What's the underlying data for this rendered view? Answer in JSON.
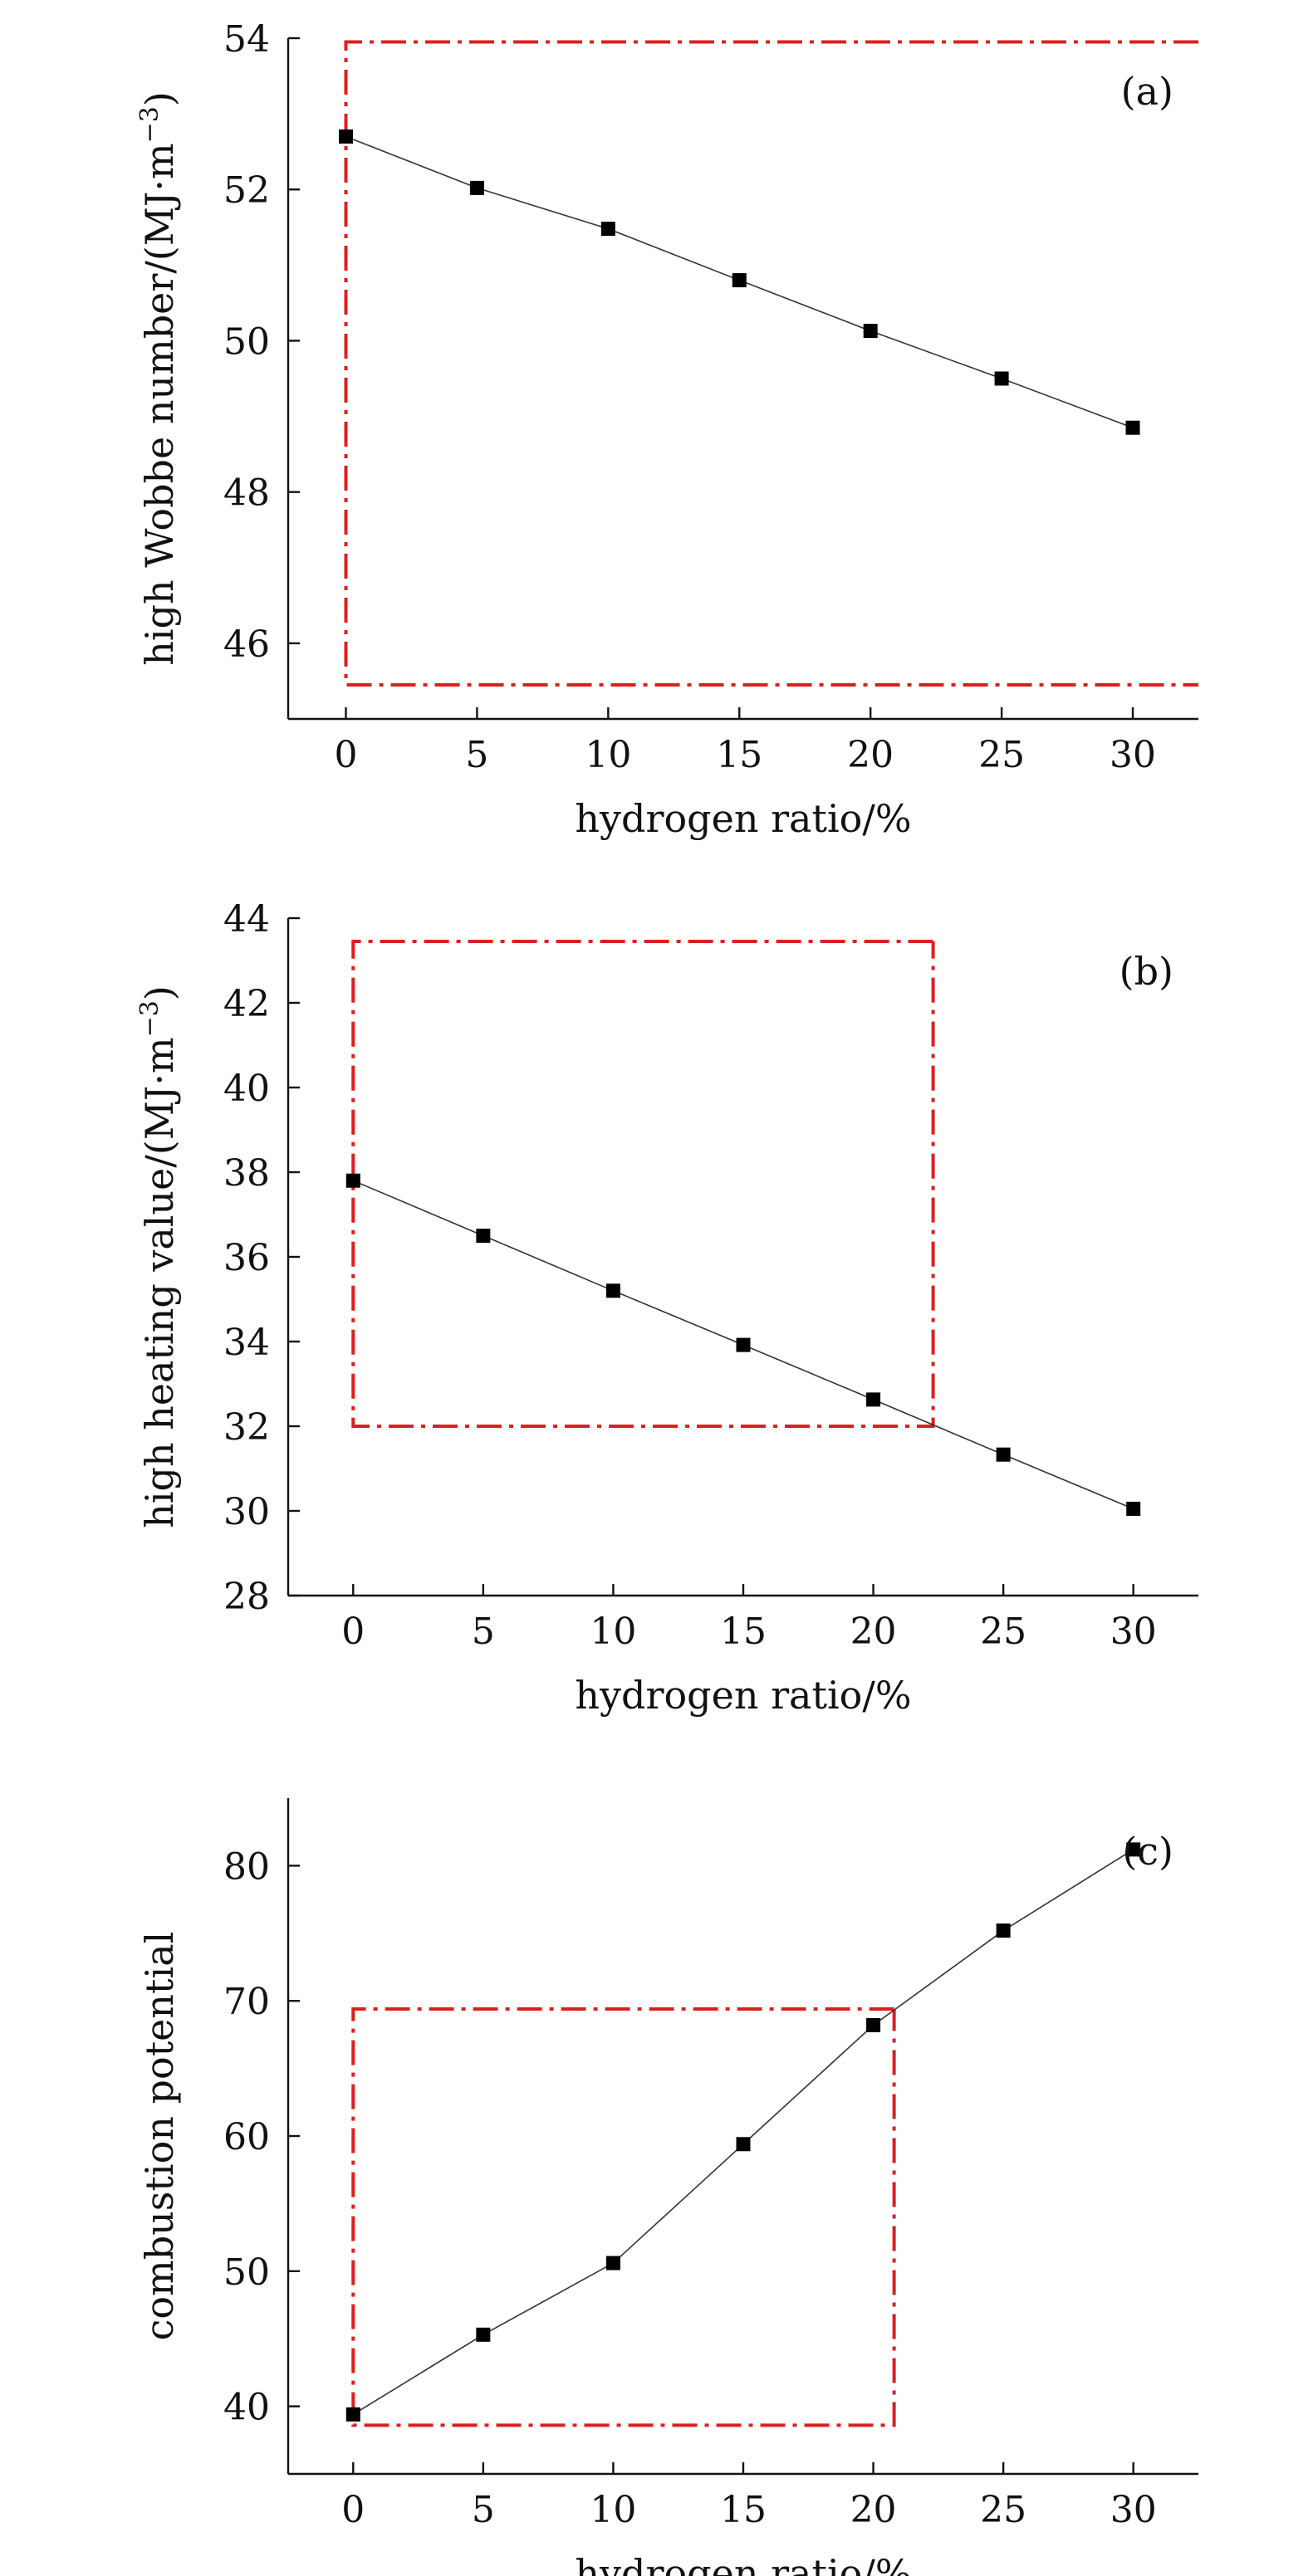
{
  "chart_data": [
    {
      "type": "line",
      "panel_label": "(a)",
      "xlabel": "hydrogen ratio/%",
      "ylabel": "high Wobbe number/(MJ·m",
      "ylabel_unit_exp": "−3",
      "ylabel_close": ")",
      "x": [
        0,
        5,
        10,
        15,
        20,
        25,
        30
      ],
      "values": [
        52.7,
        52.02,
        51.48,
        50.8,
        50.13,
        49.5,
        48.85
      ],
      "xlim": [
        -2.2,
        32.5
      ],
      "ylim": [
        45,
        54
      ],
      "xticks": [
        0,
        5,
        10,
        15,
        20,
        25,
        30
      ],
      "xtick_labels": [
        "0",
        "5",
        "10",
        "15",
        "20",
        "25",
        "30"
      ],
      "yticks": [
        46,
        48,
        50,
        52,
        54
      ],
      "ytick_labels": [
        "46",
        "48",
        "50",
        "52",
        "54"
      ],
      "limit_box": {
        "x_min": 0,
        "x_max": 32.5,
        "y_min": 45.45,
        "y_max": 53.95
      },
      "limit_color": "#dd1f1f"
    },
    {
      "type": "line",
      "panel_label": "(b)",
      "xlabel": "hydrogen ratio/%",
      "ylabel": "high heating value/(MJ·m",
      "ylabel_unit_exp": "−3",
      "ylabel_close": ")",
      "x": [
        0,
        5,
        10,
        15,
        20,
        25,
        30
      ],
      "values": [
        37.8,
        36.5,
        35.2,
        33.92,
        32.63,
        31.33,
        30.05
      ],
      "xlim": [
        -2.5,
        32.5
      ],
      "ylim": [
        28,
        44
      ],
      "xticks": [
        0,
        5,
        10,
        15,
        20,
        25,
        30
      ],
      "xtick_labels": [
        "0",
        "5",
        "10",
        "15",
        "20",
        "25",
        "30"
      ],
      "yticks": [
        28,
        30,
        32,
        34,
        36,
        38,
        40,
        42,
        44
      ],
      "ytick_labels": [
        "28",
        "30",
        "32",
        "34",
        "36",
        "38",
        "40",
        "42",
        "44"
      ],
      "limit_box": {
        "x_min": 0,
        "x_max": 22.3,
        "y_min": 32,
        "y_max": 43.45
      },
      "limit_color": "#dd1f1f"
    },
    {
      "type": "line",
      "panel_label": "(c)",
      "xlabel": "hydrogen ratio/%",
      "ylabel": "combustion potential",
      "ylabel_unit_exp": "",
      "ylabel_close": "",
      "x": [
        0,
        5,
        10,
        15,
        20,
        25,
        30
      ],
      "values": [
        39.4,
        45.3,
        50.6,
        59.4,
        68.2,
        75.2,
        81.2
      ],
      "xlim": [
        -2.5,
        32.5
      ],
      "ylim": [
        35,
        85
      ],
      "xticks": [
        0,
        5,
        10,
        15,
        20,
        25,
        30
      ],
      "xtick_labels": [
        "0",
        "5",
        "10",
        "15",
        "20",
        "25",
        "30"
      ],
      "yticks": [
        40,
        50,
        60,
        70,
        80
      ],
      "ytick_labels": [
        "40",
        "50",
        "60",
        "70",
        "80"
      ],
      "limit_box": {
        "x_min": 0,
        "x_max": 20.8,
        "y_min": 38.6,
        "y_max": 69.4
      },
      "limit_color": "#dd1f1f"
    }
  ]
}
